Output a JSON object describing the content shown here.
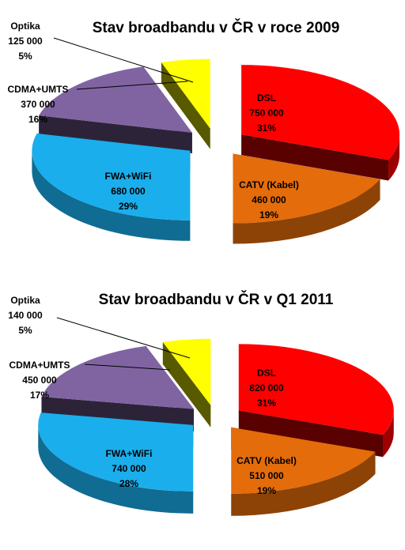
{
  "chart_data": [
    {
      "type": "pie",
      "title": "Stav broadbandu v ČR v roce 2009",
      "slices": [
        {
          "name": "DSL",
          "value": "750 000",
          "pct": "31%",
          "share": 31,
          "color": "#ff0000"
        },
        {
          "name": "CATV (Kabel)",
          "value": "460 000",
          "pct": "19%",
          "share": 19,
          "color": "#e46c0a"
        },
        {
          "name": "FWA+WiFi",
          "value": "680 000",
          "pct": "29%",
          "share": 29,
          "color": "#1aaeec"
        },
        {
          "name": "CDMA+UMTS",
          "value": "370 000",
          "pct": "16%",
          "share": 16,
          "color": "#8064a2"
        },
        {
          "name": "Optika",
          "value": "125 000",
          "pct": "5%",
          "share": 5,
          "color": "#ffff00"
        }
      ]
    },
    {
      "type": "pie",
      "title": "Stav broadbandu v ČR v Q1 2011",
      "slices": [
        {
          "name": "DSL",
          "value": "820 000",
          "pct": "31%",
          "share": 31,
          "color": "#ff0000"
        },
        {
          "name": "CATV (Kabel)",
          "value": "510 000",
          "pct": "19%",
          "share": 19,
          "color": "#e46c0a"
        },
        {
          "name": "FWA+WiFi",
          "value": "740 000",
          "pct": "28%",
          "share": 28,
          "color": "#1aaeec"
        },
        {
          "name": "CDMA+UMTS",
          "value": "450 000",
          "pct": "17%",
          "share": 17,
          "color": "#8064a2"
        },
        {
          "name": "Optika",
          "value": "140 000",
          "pct": "5%",
          "share": 5,
          "color": "#ffff00"
        }
      ]
    }
  ]
}
